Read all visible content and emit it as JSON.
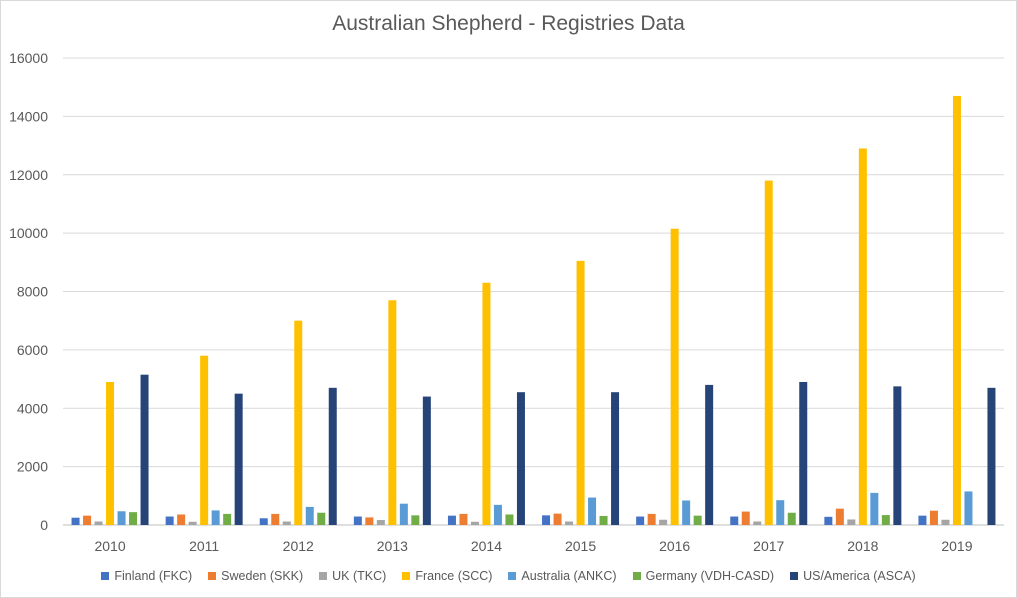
{
  "chart_data": {
    "type": "bar",
    "title": "Australian Shepherd - Registries Data",
    "xlabel": "",
    "ylabel": "",
    "categories": [
      "2010",
      "2011",
      "2012",
      "2013",
      "2014",
      "2015",
      "2016",
      "2017",
      "2018",
      "2019"
    ],
    "ylim": [
      0,
      16000
    ],
    "yticks": [
      "0",
      "2000",
      "4000",
      "6000",
      "8000",
      "10000",
      "12000",
      "14000",
      "16000"
    ],
    "grid": true,
    "legend_position": "bottom",
    "series": [
      {
        "name": "Finland (FKC)",
        "color": "#4472C4",
        "values": [
          250,
          290,
          230,
          290,
          320,
          330,
          290,
          290,
          280,
          320
        ]
      },
      {
        "name": "Sweden (SKK)",
        "color": "#ED7D31",
        "values": [
          320,
          360,
          380,
          260,
          380,
          390,
          380,
          460,
          560,
          490
        ]
      },
      {
        "name": "UK (TKC)",
        "color": "#A5A5A5",
        "values": [
          120,
          110,
          120,
          170,
          110,
          120,
          180,
          120,
          190,
          180
        ]
      },
      {
        "name": "France (SCC)",
        "color": "#FFC000",
        "values": [
          4900,
          5800,
          7000,
          7700,
          8300,
          9050,
          10150,
          11800,
          12900,
          14700
        ]
      },
      {
        "name": "Australia (ANKC)",
        "color": "#5B9BD5",
        "values": [
          470,
          500,
          620,
          730,
          690,
          940,
          840,
          850,
          1100,
          1150
        ]
      },
      {
        "name": "Germany (VDH-CASD)",
        "color": "#70AD47",
        "values": [
          440,
          380,
          420,
          330,
          360,
          310,
          320,
          420,
          340,
          0
        ]
      },
      {
        "name": "US/America (ASCA)",
        "color": "#264478",
        "values": [
          5150,
          4500,
          4700,
          4400,
          4550,
          4550,
          4800,
          4900,
          4750,
          4700
        ]
      }
    ]
  }
}
